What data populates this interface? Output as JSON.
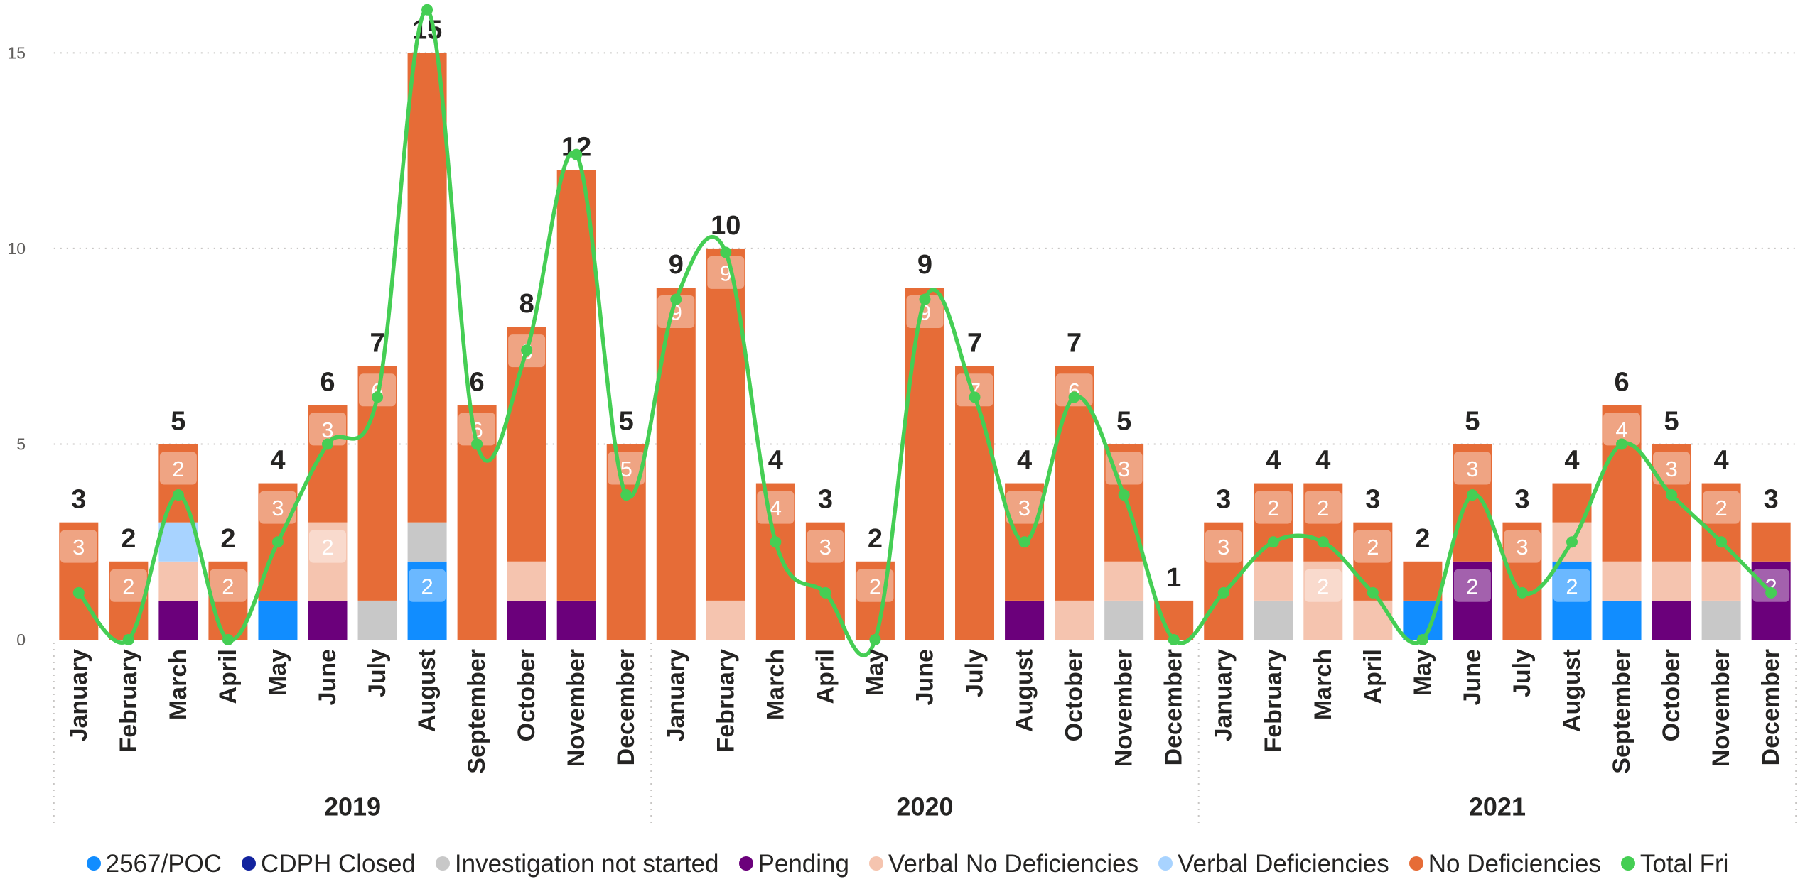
{
  "chart_data": {
    "type": "bar",
    "stacked": true,
    "grid": true,
    "legend_position": "bottom",
    "ylim": [
      0,
      16.35
    ],
    "y_ticks": [
      0,
      5,
      10,
      15
    ],
    "groups": [
      {
        "label": "2019",
        "categories": [
          "January",
          "February",
          "March",
          "April",
          "May",
          "June",
          "July",
          "August",
          "September",
          "October",
          "November",
          "December"
        ]
      },
      {
        "label": "2020",
        "categories": [
          "January",
          "February",
          "March",
          "April",
          "May",
          "June",
          "July",
          "August",
          "October",
          "November",
          "December"
        ]
      },
      {
        "label": "2021",
        "categories": [
          "January",
          "February",
          "March",
          "April",
          "May",
          "June",
          "July",
          "August",
          "September",
          "October",
          "November",
          "December"
        ]
      }
    ],
    "series": [
      {
        "name": "2567/POC",
        "color": "#118DFF",
        "values": [
          0,
          0,
          0,
          0,
          1,
          0,
          0,
          2,
          0,
          0,
          0,
          0,
          0,
          0,
          0,
          0,
          0,
          0,
          0,
          0,
          0,
          0,
          0,
          0,
          0,
          0,
          0,
          1,
          0,
          0,
          2,
          1,
          0,
          0,
          0
        ]
      },
      {
        "name": "CDPH Closed",
        "color": "#12239E",
        "values": [
          0,
          0,
          0,
          0,
          0,
          0,
          0,
          0,
          0,
          0,
          0,
          0,
          0,
          0,
          0,
          0,
          0,
          0,
          0,
          0,
          0,
          0,
          0,
          0,
          0,
          0,
          0,
          0,
          0,
          0,
          0,
          0,
          0,
          0,
          0
        ]
      },
      {
        "name": "Investigation not started",
        "color": "#C8C8C8",
        "values": [
          0,
          0,
          0,
          0,
          0,
          0,
          1,
          1,
          0,
          0,
          0,
          0,
          0,
          0,
          0,
          0,
          0,
          0,
          0,
          0,
          0,
          1,
          0,
          0,
          1,
          0,
          0,
          0,
          0,
          0,
          0,
          0,
          0,
          1,
          0
        ]
      },
      {
        "name": "Pending",
        "color": "#6B007B",
        "values": [
          0,
          0,
          1,
          0,
          0,
          1,
          0,
          0,
          0,
          1,
          1,
          0,
          0,
          0,
          0,
          0,
          0,
          0,
          0,
          1,
          0,
          0,
          0,
          0,
          0,
          0,
          0,
          0,
          2,
          0,
          0,
          0,
          1,
          0,
          2
        ]
      },
      {
        "name": "Verbal No Deficiencies",
        "color": "#F5C4AF",
        "values": [
          0,
          0,
          1,
          0,
          0,
          2,
          0,
          0,
          0,
          1,
          0,
          0,
          0,
          1,
          0,
          0,
          0,
          0,
          0,
          0,
          1,
          1,
          0,
          0,
          1,
          2,
          1,
          0,
          0,
          0,
          1,
          1,
          1,
          1,
          0
        ]
      },
      {
        "name": "Verbal Deficiencies",
        "color": "#A8D3FF",
        "values": [
          0,
          0,
          1,
          0,
          0,
          0,
          0,
          0,
          0,
          0,
          0,
          0,
          0,
          0,
          0,
          0,
          0,
          0,
          0,
          0,
          0,
          0,
          0,
          0,
          0,
          0,
          0,
          0,
          0,
          0,
          0,
          0,
          0,
          0,
          0
        ]
      },
      {
        "name": "No Deficiencies",
        "color": "#E66C37",
        "values": [
          3,
          2,
          2,
          2,
          3,
          3,
          6,
          12,
          6,
          6,
          11,
          5,
          9,
          9,
          4,
          3,
          2,
          9,
          7,
          3,
          6,
          3,
          1,
          3,
          2,
          2,
          2,
          1,
          3,
          3,
          1,
          4,
          3,
          2,
          1
        ]
      }
    ],
    "totals": [
      3,
      2,
      5,
      2,
      4,
      6,
      7,
      15,
      6,
      8,
      12,
      5,
      9,
      10,
      4,
      3,
      2,
      9,
      7,
      4,
      7,
      5,
      1,
      3,
      4,
      4,
      3,
      2,
      5,
      3,
      4,
      6,
      5,
      4,
      3
    ],
    "line_series": {
      "name": "Total Fri",
      "type": "line",
      "color": "#45CE54",
      "values": [
        1.2,
        0,
        3.7,
        0,
        2.5,
        5.0,
        6.2,
        16.1,
        5.0,
        7.4,
        12.4,
        3.7,
        8.7,
        9.9,
        2.5,
        1.2,
        0,
        8.7,
        6.2,
        2.5,
        6.2,
        3.7,
        0,
        1.2,
        2.5,
        2.5,
        1.2,
        0,
        3.7,
        1.2,
        2.5,
        5.0,
        3.7,
        2.5,
        1.2
      ]
    }
  }
}
